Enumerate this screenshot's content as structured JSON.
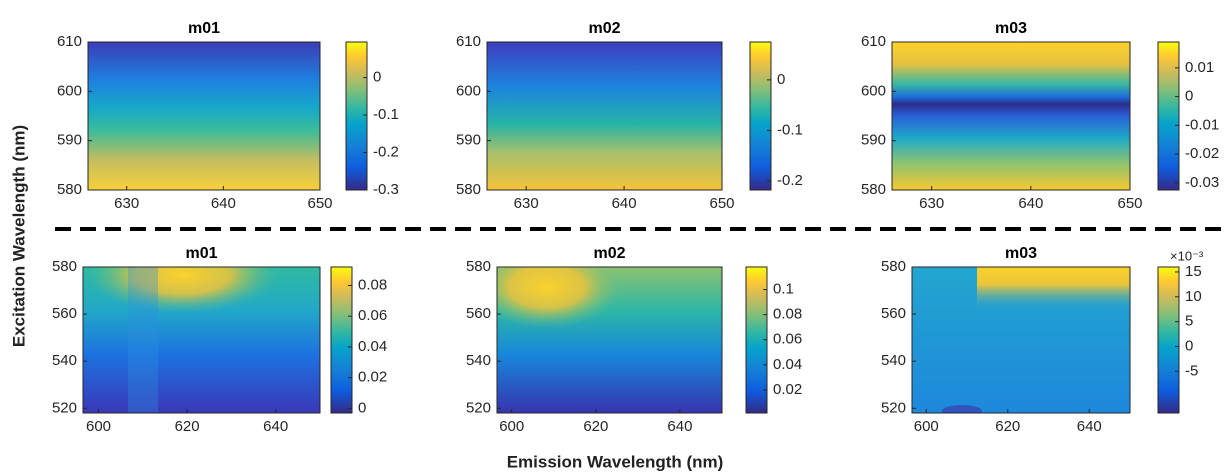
{
  "ylabel": "Excitation Wavelength (nm)",
  "xlabel": "Emission Wavelength (nm)",
  "chart_data": [
    {
      "type": "heatmap",
      "title": "m01",
      "xlim": [
        626,
        650
      ],
      "xticks": [
        630,
        640,
        650
      ],
      "ylim": [
        580,
        610
      ],
      "yticks": [
        580,
        590,
        600,
        610
      ],
      "clim": [
        -0.3,
        0.095
      ],
      "cticks": [
        -0.3,
        -0.2,
        -0.1,
        0
      ]
    },
    {
      "type": "heatmap",
      "title": "m02",
      "xlim": [
        626,
        650
      ],
      "xticks": [
        630,
        640,
        650
      ],
      "ylim": [
        580,
        610
      ],
      "yticks": [
        580,
        590,
        600,
        610
      ],
      "clim": [
        -0.218,
        0.075
      ],
      "cticks": [
        -0.2,
        -0.1,
        0
      ]
    },
    {
      "type": "heatmap",
      "title": "m03",
      "xlim": [
        626,
        650
      ],
      "xticks": [
        630,
        640,
        650
      ],
      "ylim": [
        580,
        610
      ],
      "yticks": [
        580,
        590,
        600,
        610
      ],
      "clim": [
        -0.0325,
        0.019
      ],
      "cticks": [
        -0.03,
        -0.02,
        -0.01,
        0,
        0.01
      ]
    },
    {
      "type": "heatmap",
      "title": "m01",
      "xlim": [
        596.5,
        650
      ],
      "xticks": [
        600,
        620,
        640
      ],
      "ylim": [
        518,
        580
      ],
      "yticks": [
        520,
        540,
        560,
        580
      ],
      "clim": [
        -0.003,
        0.092
      ],
      "cticks": [
        0,
        0.02,
        0.04,
        0.06,
        0.08
      ]
    },
    {
      "type": "heatmap",
      "title": "m02",
      "xlim": [
        596.5,
        650
      ],
      "xticks": [
        600,
        620,
        640
      ],
      "ylim": [
        518,
        580
      ],
      "yticks": [
        520,
        540,
        560,
        580
      ],
      "clim": [
        0.0016,
        0.118
      ],
      "cticks": [
        0.02,
        0.04,
        0.06,
        0.08,
        0.1
      ]
    },
    {
      "type": "heatmap",
      "title": "m03",
      "xlim": [
        596.5,
        650
      ],
      "xticks": [
        600,
        620,
        640
      ],
      "ylim": [
        518,
        580
      ],
      "yticks": [
        520,
        540,
        560,
        580
      ],
      "clim": [
        -13.4,
        16
      ],
      "cticks": [
        -5,
        0,
        5,
        10,
        15
      ],
      "colorbar_exponent": "×10⁻³"
    }
  ]
}
